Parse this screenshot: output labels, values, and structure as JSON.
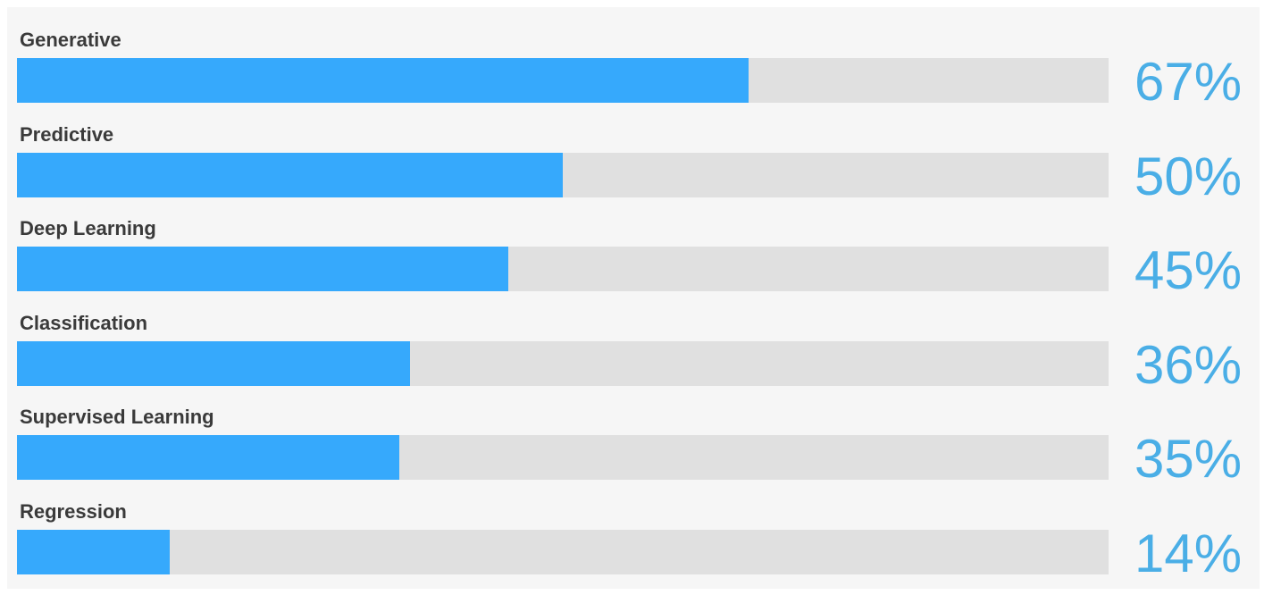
{
  "chart_data": {
    "type": "bar",
    "orientation": "horizontal",
    "categories": [
      "Generative",
      "Predictive",
      "Deep Learning",
      "Classification",
      "Supervised Learning",
      "Regression"
    ],
    "values": [
      67,
      50,
      45,
      36,
      35,
      14
    ],
    "value_labels": [
      "67%",
      "50%",
      "45%",
      "36%",
      "35%",
      "14%"
    ],
    "xlim": [
      0,
      100
    ],
    "unit": "%",
    "grid": false,
    "legend": "none"
  },
  "colors": {
    "bar_fill": "#36a9fc",
    "bar_track": "#e0e0e0",
    "percent_text": "#4aaee6",
    "label_text": "#3a3a3a",
    "panel_background": "#f6f6f6"
  }
}
